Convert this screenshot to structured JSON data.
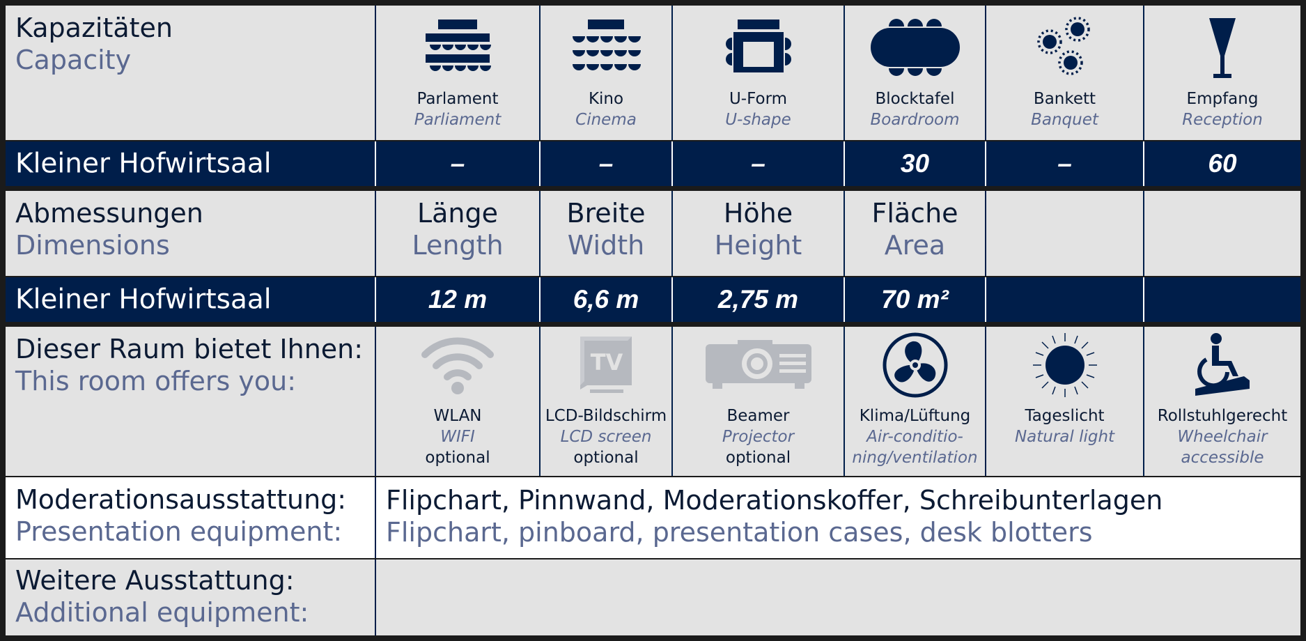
{
  "capacity": {
    "label_de": "Kapazitäten",
    "label_en": "Capacity",
    "columns": [
      {
        "de": "Parlament",
        "en": "Parliament",
        "icon": "parliament-seating-icon"
      },
      {
        "de": "Kino",
        "en": "Cinema",
        "icon": "cinema-seating-icon"
      },
      {
        "de": "U-Form",
        "en": "U-shape",
        "icon": "u-shape-seating-icon"
      },
      {
        "de": "Blocktafel",
        "en": "Boardroom",
        "icon": "boardroom-table-icon"
      },
      {
        "de": "Bankett",
        "en": "Banquet",
        "icon": "banquet-tables-icon"
      },
      {
        "de": "Empfang",
        "en": "Reception",
        "icon": "reception-glass-icon"
      }
    ]
  },
  "capacity_row": {
    "room": "Kleiner Hofwirtsaal",
    "values": [
      "–",
      "–",
      "–",
      "30",
      "–",
      "60"
    ]
  },
  "dimensions": {
    "label_de": "Abmessungen",
    "label_en": "Dimensions",
    "columns": [
      {
        "de": "Länge",
        "en": "Length"
      },
      {
        "de": "Breite",
        "en": "Width"
      },
      {
        "de": "Höhe",
        "en": "Height"
      },
      {
        "de": "Fläche",
        "en": "Area"
      }
    ]
  },
  "dimensions_row": {
    "room": "Kleiner Hofwirtsaal",
    "values": [
      "12 m",
      "6,6 m",
      "2,75 m",
      "70 m²"
    ]
  },
  "features": {
    "label_de": "Dieser Raum bietet Ihnen:",
    "label_en": "This room offers you:",
    "items": [
      {
        "de": "WLAN",
        "en": "WIFI",
        "note": "optional",
        "icon": "wifi-icon"
      },
      {
        "de": "LCD-Bildschirm",
        "en": "LCD screen",
        "note": "optional",
        "icon": "tv-icon"
      },
      {
        "de": "Beamer",
        "en": "Projector",
        "note": "optional",
        "icon": "projector-icon"
      },
      {
        "de": "Klima/Lüftung",
        "en": "Air-conditio-",
        "en2": "ning/ventilation",
        "icon": "fan-icon"
      },
      {
        "de": "Tageslicht",
        "en": "Natural light",
        "icon": "sun-icon"
      },
      {
        "de": "Rollstuhlgerecht",
        "en": "Wheelchair",
        "en2": "accessible",
        "icon": "wheelchair-icon"
      }
    ]
  },
  "presentation": {
    "label_de": "Moderationsausstattung:",
    "label_en": "Presentation equipment:",
    "value_de": "Flipchart, Pinnwand, Moderationskoffer, Schreibunterlagen",
    "value_en": "Flipchart, pinboard, presentation cases, desk blotters"
  },
  "additional": {
    "label_de": "Weitere Ausstattung:",
    "label_en": "Additional equipment:"
  },
  "colors": {
    "navy": "#001e4a",
    "muted_blue": "#5a6890",
    "light_bg": "#e3e3e3",
    "icon_grey": "#b6b9bf"
  }
}
